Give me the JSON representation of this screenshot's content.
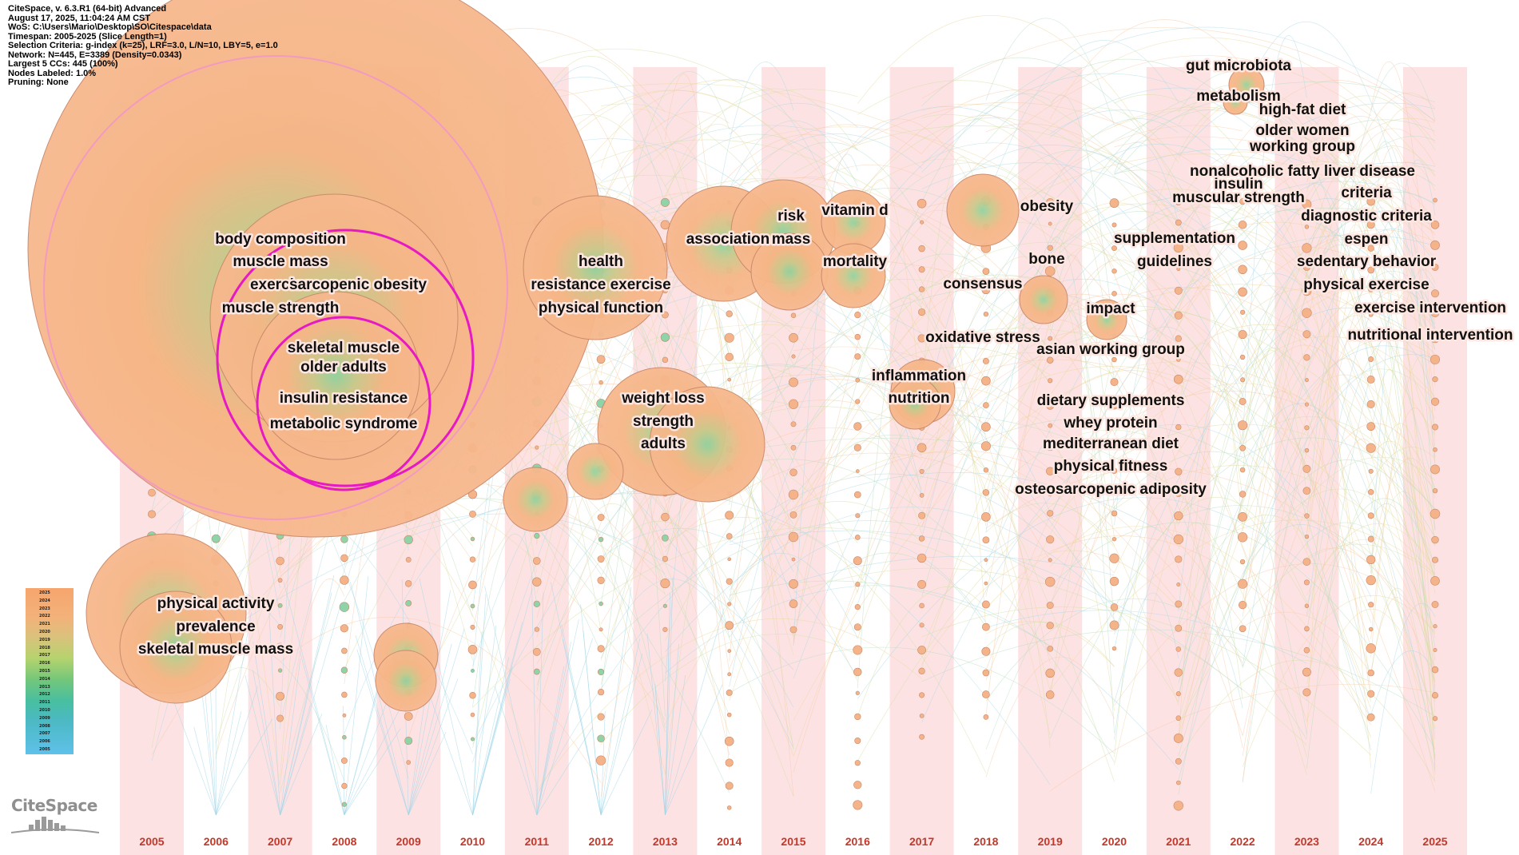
{
  "header": {
    "lines": [
      "CiteSpace, v. 6.3.R1 (64-bit) Advanced",
      "August 17, 2025, 11:04:24 AM CST",
      "WoS: C:\\Users\\Mario\\Desktop\\SO\\Citespace\\data",
      "Timespan: 2005-2025 (Slice Length=1)",
      "Selection Criteria: g-index (k=25), LRF=3.0, L/N=10, LBY=5, e=1.0",
      "Network: N=445, E=3389 (Density=0.0343)",
      "Largest 5 CCs: 445 (100%)",
      "Nodes Labeled: 1.0%",
      "Pruning: None"
    ]
  },
  "logo": {
    "text": "CiteSpace"
  },
  "legend": {
    "years": [
      "2025",
      "2024",
      "2023",
      "2022",
      "2021",
      "2020",
      "2019",
      "2018",
      "2017",
      "2016",
      "2015",
      "2014",
      "2013",
      "2012",
      "2011",
      "2010",
      "2009",
      "2008",
      "2007",
      "2006",
      "2005"
    ]
  },
  "colors": {
    "node": "#f7b88e",
    "node_stroke": "#c9896a",
    "band": "#fde2e4",
    "centrality_ring": "#e619c4",
    "year_label": "#c0392b",
    "link": "#c9d89a"
  },
  "years": [
    "2005",
    "2006",
    "2007",
    "2008",
    "2009",
    "2010",
    "2011",
    "2012",
    "2013",
    "2014",
    "2015",
    "2016",
    "2017",
    "2018",
    "2019",
    "2020",
    "2021",
    "2022",
    "2023",
    "2024",
    "2025"
  ],
  "keywords": [
    {
      "label": "body composition",
      "year": "2008"
    },
    {
      "label": "muscle mass",
      "year": "2008"
    },
    {
      "label": "exercise",
      "year": "2008"
    },
    {
      "label": "sarcopenic obesity",
      "year": "2008"
    },
    {
      "label": "muscle strength",
      "year": "2008"
    },
    {
      "label": "skeletal muscle",
      "year": "2008"
    },
    {
      "label": "older adults",
      "year": "2008"
    },
    {
      "label": "insulin resistance",
      "year": "2008"
    },
    {
      "label": "metabolic syndrome",
      "year": "2008"
    },
    {
      "label": "physical activity",
      "year": "2006"
    },
    {
      "label": "prevalence",
      "year": "2006"
    },
    {
      "label": "skeletal muscle mass",
      "year": "2006"
    },
    {
      "label": "health",
      "year": "2012"
    },
    {
      "label": "resistance exercise",
      "year": "2012"
    },
    {
      "label": "physical function",
      "year": "2012"
    },
    {
      "label": "weight loss",
      "year": "2013"
    },
    {
      "label": "strength",
      "year": "2013"
    },
    {
      "label": "adults",
      "year": "2013"
    },
    {
      "label": "association",
      "year": "2014"
    },
    {
      "label": "risk",
      "year": "2015"
    },
    {
      "label": "mass",
      "year": "2015"
    },
    {
      "label": "vitamin d",
      "year": "2016"
    },
    {
      "label": "mortality",
      "year": "2016"
    },
    {
      "label": "inflammation",
      "year": "2017"
    },
    {
      "label": "nutrition",
      "year": "2017"
    },
    {
      "label": "consensus",
      "year": "2018"
    },
    {
      "label": "oxidative stress",
      "year": "2018"
    },
    {
      "label": "obesity",
      "year": "2019"
    },
    {
      "label": "bone",
      "year": "2019"
    },
    {
      "label": "impact",
      "year": "2020"
    },
    {
      "label": "asian working group",
      "year": "2020"
    },
    {
      "label": "dietary supplements",
      "year": "2020"
    },
    {
      "label": "whey protein",
      "year": "2020"
    },
    {
      "label": "mediterranean diet",
      "year": "2020"
    },
    {
      "label": "physical fitness",
      "year": "2020"
    },
    {
      "label": "osteosarcopenic adiposity",
      "year": "2020"
    },
    {
      "label": "supplementation",
      "year": "2021"
    },
    {
      "label": "guidelines",
      "year": "2021"
    },
    {
      "label": "insulin",
      "year": "2022"
    },
    {
      "label": "muscular strength",
      "year": "2022"
    },
    {
      "label": "gut microbiota",
      "year": "2022"
    },
    {
      "label": "metabolism",
      "year": "2022"
    },
    {
      "label": "nonalcoholic fatty liver disease",
      "year": "2022"
    },
    {
      "label": "high-fat diet",
      "year": "2023"
    },
    {
      "label": "older women",
      "year": "2023"
    },
    {
      "label": "working group",
      "year": "2023"
    },
    {
      "label": "criteria",
      "year": "2024"
    },
    {
      "label": "diagnostic criteria",
      "year": "2024"
    },
    {
      "label": "espen",
      "year": "2024"
    },
    {
      "label": "sedentary behavior",
      "year": "2024"
    },
    {
      "label": "physical exercise",
      "year": "2024"
    },
    {
      "label": "exercise intervention",
      "year": "2025"
    },
    {
      "label": "nutritional intervention",
      "year": "2025"
    }
  ]
}
